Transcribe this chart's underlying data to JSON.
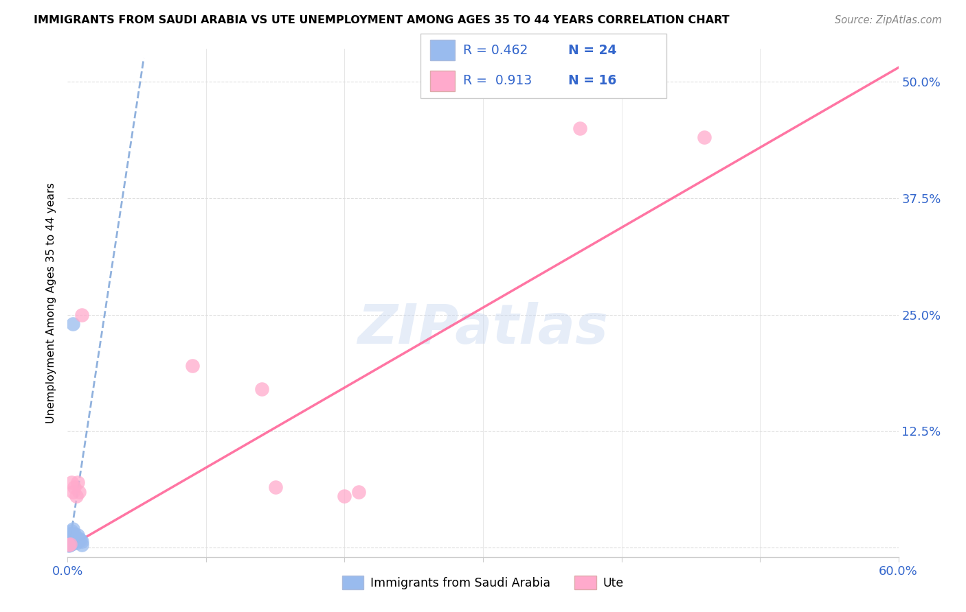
{
  "title": "IMMIGRANTS FROM SAUDI ARABIA VS UTE UNEMPLOYMENT AMONG AGES 35 TO 44 YEARS CORRELATION CHART",
  "source": "Source: ZipAtlas.com",
  "ylabel": "Unemployment Among Ages 35 to 44 years",
  "ytick_labels": [
    "",
    "12.5%",
    "25.0%",
    "37.5%",
    "50.0%"
  ],
  "ytick_values": [
    0.0,
    0.125,
    0.25,
    0.375,
    0.5
  ],
  "xlim": [
    0.0,
    0.6
  ],
  "ylim": [
    -0.01,
    0.535
  ],
  "legend_label1": "Immigrants from Saudi Arabia",
  "legend_label2": "Ute",
  "R1": "0.462",
  "N1": "24",
  "R2": "0.913",
  "N2": "16",
  "watermark": "ZIPatlas",
  "blue_color": "#99BBEE",
  "pink_color": "#FFAACC",
  "blue_line_color": "#5588CC",
  "pink_line_color": "#FF6699",
  "blue_scatter": [
    [
      0.001,
      0.003
    ],
    [
      0.002,
      0.005
    ],
    [
      0.001,
      0.007
    ],
    [
      0.003,
      0.004
    ],
    [
      0.002,
      0.008
    ],
    [
      0.001,
      0.01
    ],
    [
      0.003,
      0.012
    ],
    [
      0.004,
      0.005
    ],
    [
      0.002,
      0.015
    ],
    [
      0.003,
      0.018
    ],
    [
      0.005,
      0.008
    ],
    [
      0.006,
      0.01
    ],
    [
      0.004,
      0.02
    ],
    [
      0.002,
      0.003
    ],
    [
      0.001,
      0.002
    ],
    [
      0.003,
      0.006
    ],
    [
      0.005,
      0.015
    ],
    [
      0.007,
      0.013
    ],
    [
      0.008,
      0.01
    ],
    [
      0.006,
      0.005
    ],
    [
      0.009,
      0.008
    ],
    [
      0.01,
      0.003
    ],
    [
      0.01,
      0.007
    ],
    [
      0.004,
      0.24
    ]
  ],
  "pink_scatter": [
    [
      0.001,
      0.003
    ],
    [
      0.002,
      0.004
    ],
    [
      0.003,
      0.07
    ],
    [
      0.004,
      0.06
    ],
    [
      0.005,
      0.065
    ],
    [
      0.006,
      0.055
    ],
    [
      0.007,
      0.07
    ],
    [
      0.008,
      0.06
    ],
    [
      0.01,
      0.25
    ],
    [
      0.09,
      0.195
    ],
    [
      0.14,
      0.17
    ],
    [
      0.15,
      0.065
    ],
    [
      0.2,
      0.055
    ],
    [
      0.21,
      0.06
    ],
    [
      0.37,
      0.45
    ],
    [
      0.46,
      0.44
    ]
  ],
  "blue_trend_x": [
    0.001,
    0.055
  ],
  "blue_trend_y": [
    0.0,
    0.525
  ],
  "pink_trend_x": [
    0.0,
    0.6
  ],
  "pink_trend_y": [
    0.0,
    0.515
  ]
}
